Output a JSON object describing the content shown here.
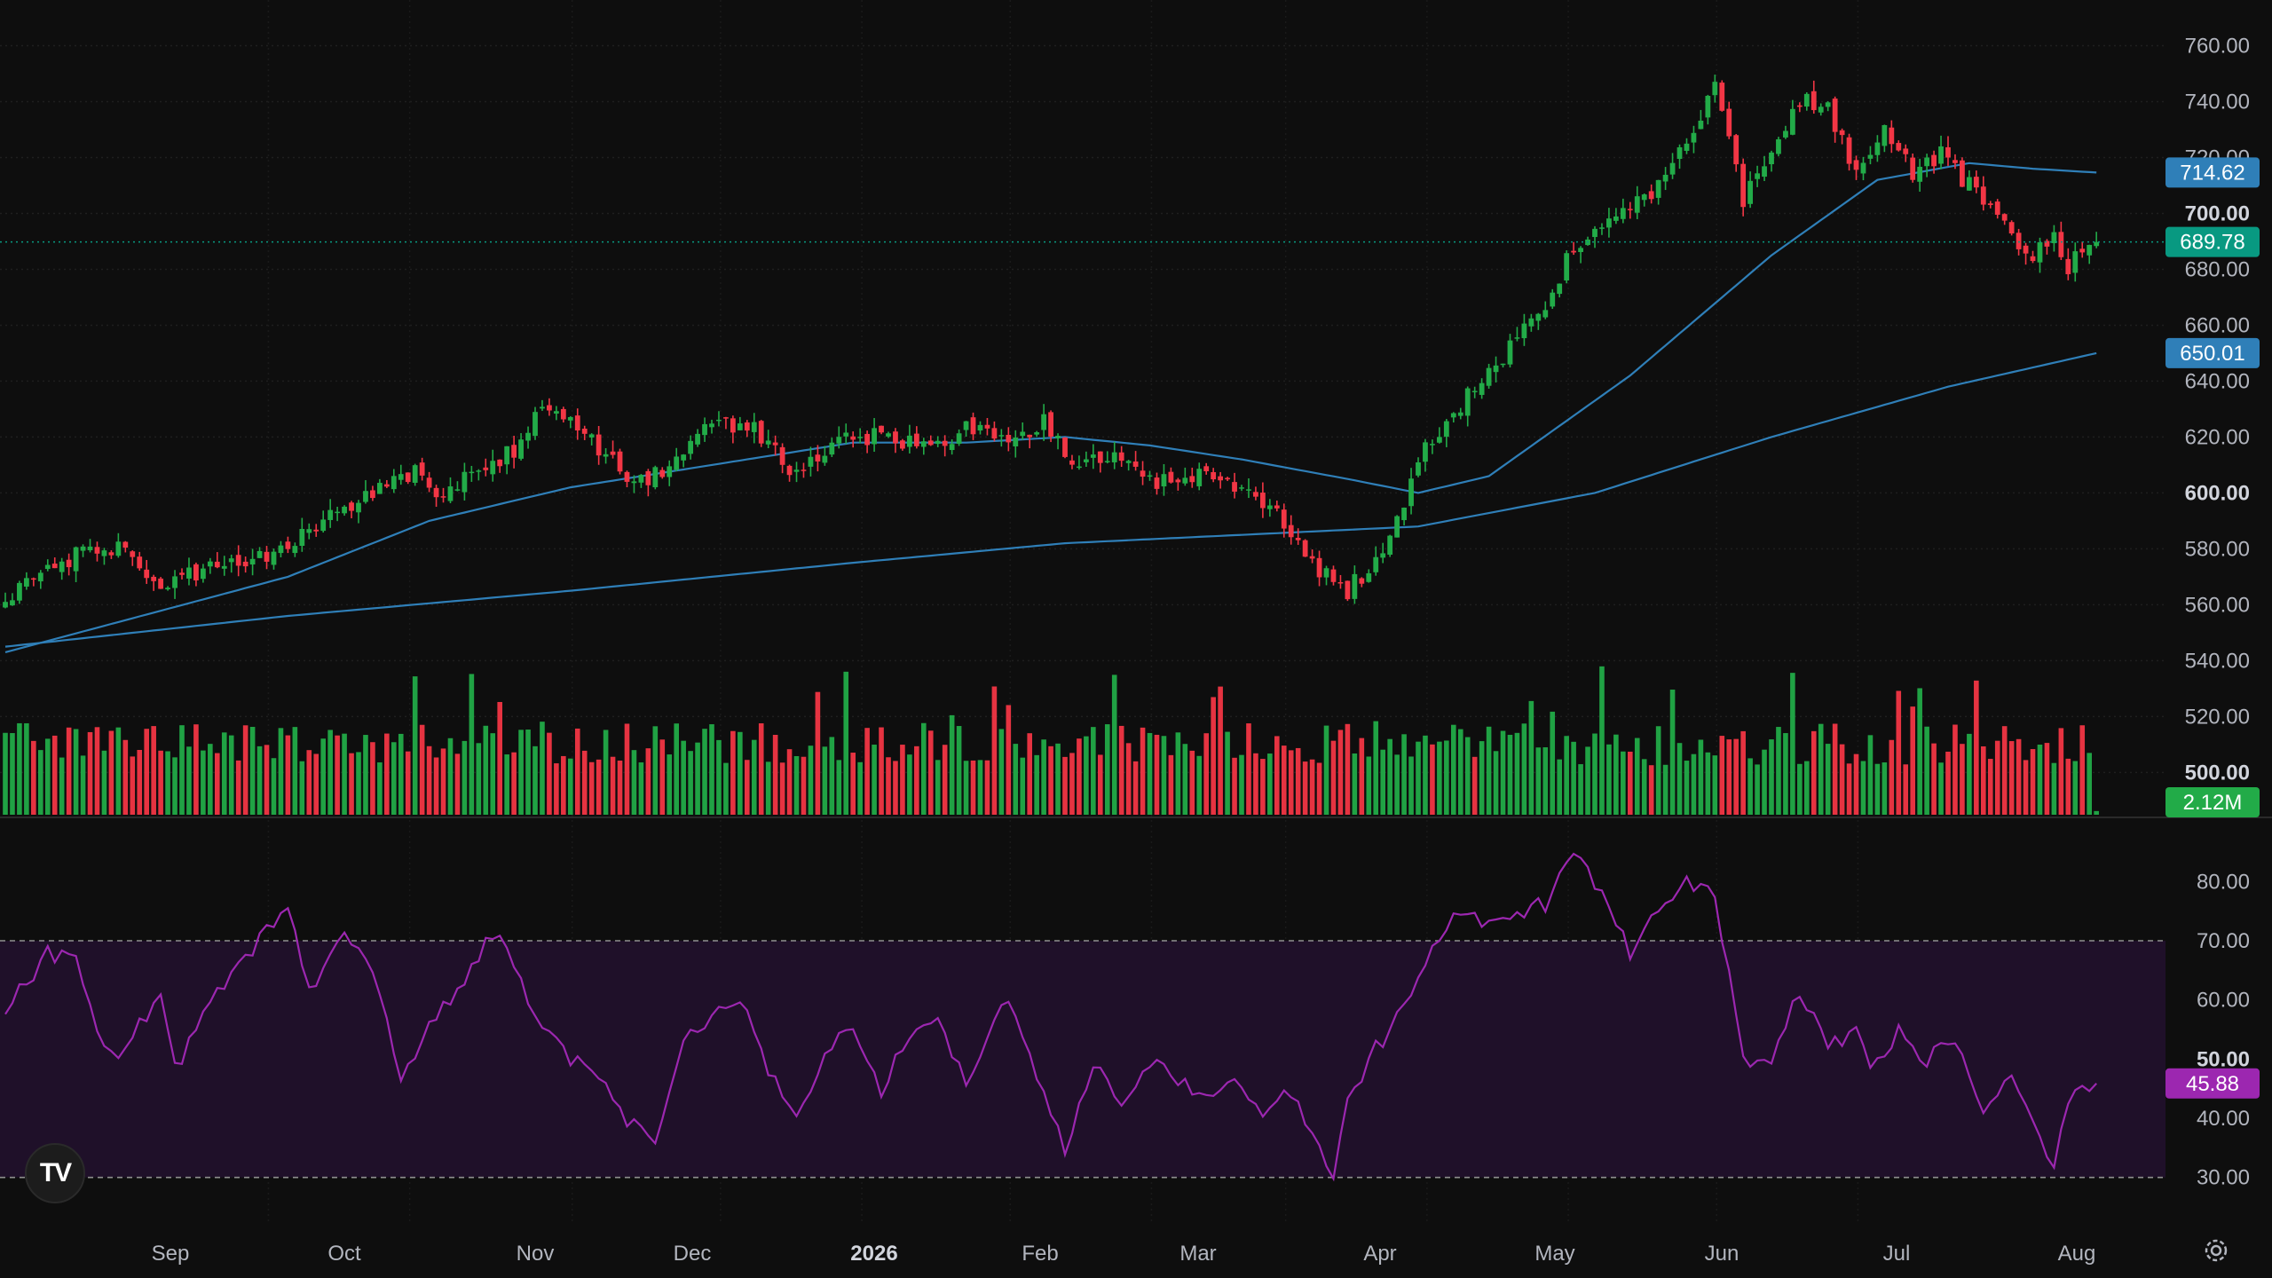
{
  "chart_data": [
    {
      "type": "candlestick",
      "ylim": [
        489,
        770
      ],
      "y_ticks": [
        "760.00",
        "740.00",
        "720.00",
        "700.00",
        "680.00",
        "660.00",
        "640.00",
        "620.00",
        "600.00",
        "580.00",
        "560.00",
        "540.00",
        "520.00",
        "500.00"
      ],
      "bold_ticks": [
        "700.00",
        "600.00",
        "500.00"
      ],
      "x_ticks": [
        "Sep",
        "Oct",
        "Nov",
        "Dec",
        "2026",
        "Feb",
        "Mar",
        "Apr",
        "May",
        "Jun",
        "Jul",
        "Aug"
      ],
      "anchors": [
        [
          0,
          562
        ],
        [
          10,
          578
        ],
        [
          16,
          581
        ],
        [
          22,
          565
        ],
        [
          30,
          575
        ],
        [
          38,
          578
        ],
        [
          45,
          590
        ],
        [
          52,
          600
        ],
        [
          58,
          608
        ],
        [
          62,
          598
        ],
        [
          66,
          608
        ],
        [
          72,
          615
        ],
        [
          76,
          633
        ],
        [
          80,
          628
        ],
        [
          85,
          612
        ],
        [
          90,
          603
        ],
        [
          95,
          612
        ],
        [
          100,
          624
        ],
        [
          106,
          622
        ],
        [
          112,
          607
        ],
        [
          118,
          618
        ],
        [
          125,
          621
        ],
        [
          131,
          616
        ],
        [
          137,
          624
        ],
        [
          143,
          618
        ],
        [
          147,
          625
        ],
        [
          151,
          610
        ],
        [
          157,
          612
        ],
        [
          163,
          604
        ],
        [
          169,
          606
        ],
        [
          175,
          603
        ],
        [
          181,
          590
        ],
        [
          186,
          572
        ],
        [
          190,
          565
        ],
        [
          194,
          577
        ],
        [
          197,
          590
        ],
        [
          201,
          617
        ],
        [
          206,
          632
        ],
        [
          212,
          648
        ],
        [
          218,
          668
        ],
        [
          222,
          688
        ],
        [
          226,
          698
        ],
        [
          232,
          704
        ],
        [
          238,
          725
        ],
        [
          242,
          745
        ],
        [
          246,
          705
        ],
        [
          250,
          725
        ],
        [
          254,
          740
        ],
        [
          258,
          738
        ],
        [
          262,
          715
        ],
        [
          266,
          732
        ],
        [
          270,
          715
        ],
        [
          274,
          722
        ],
        [
          278,
          710
        ],
        [
          282,
          700
        ],
        [
          286,
          684
        ],
        [
          290,
          692
        ],
        [
          292,
          680
        ],
        [
          294,
          688
        ],
        [
          296,
          690
        ]
      ],
      "sma50_anchors": [
        [
          0,
          543
        ],
        [
          40,
          570
        ],
        [
          60,
          590
        ],
        [
          80,
          602
        ],
        [
          100,
          610
        ],
        [
          120,
          618
        ],
        [
          136,
          618
        ],
        [
          150,
          620
        ],
        [
          162,
          617
        ],
        [
          175,
          612
        ],
        [
          190,
          605
        ],
        [
          200,
          600
        ],
        [
          210,
          606
        ],
        [
          230,
          642
        ],
        [
          250,
          685
        ],
        [
          265,
          712
        ],
        [
          278,
          718
        ],
        [
          287,
          716
        ],
        [
          296,
          714.62
        ]
      ],
      "sma200_anchors": [
        [
          0,
          545
        ],
        [
          40,
          556
        ],
        [
          80,
          565
        ],
        [
          120,
          575
        ],
        [
          150,
          582
        ],
        [
          175,
          585
        ],
        [
          200,
          588
        ],
        [
          225,
          600
        ],
        [
          250,
          620
        ],
        [
          275,
          638
        ],
        [
          296,
          650.01
        ]
      ],
      "volume_max": 5.8,
      "series": [
        {
          "name": "",
          "badge": "714.62",
          "color": "#2f7fb8"
        },
        {
          "name": "",
          "badge": "689.78",
          "color": "#089981"
        },
        {
          "name": "",
          "badge": "650.01",
          "color": "#2f7fb8"
        },
        {
          "name": "",
          "badge": "2.12M",
          "color": "#22ab48"
        }
      ]
    },
    {
      "type": "line",
      "ylim": [
        25,
        88
      ],
      "y_ticks": [
        "80.00",
        "70.00",
        "60.00",
        "50.00",
        "40.00",
        "30.00"
      ],
      "bold_ticks": [
        "50.00"
      ],
      "band": [
        30,
        70
      ],
      "anchors": [
        [
          0,
          58
        ],
        [
          6,
          68
        ],
        [
          10,
          66
        ],
        [
          12,
          58
        ],
        [
          15,
          50
        ],
        [
          18,
          55
        ],
        [
          22,
          60
        ],
        [
          24,
          48
        ],
        [
          28,
          58
        ],
        [
          32,
          64
        ],
        [
          36,
          70
        ],
        [
          40,
          75
        ],
        [
          43,
          62
        ],
        [
          48,
          71
        ],
        [
          52,
          65
        ],
        [
          56,
          46
        ],
        [
          60,
          55
        ],
        [
          64,
          62
        ],
        [
          68,
          70
        ],
        [
          71,
          70
        ],
        [
          75,
          56
        ],
        [
          80,
          50
        ],
        [
          85,
          46
        ],
        [
          88,
          40
        ],
        [
          92,
          35
        ],
        [
          96,
          52
        ],
        [
          100,
          58
        ],
        [
          104,
          60
        ],
        [
          108,
          48
        ],
        [
          112,
          40
        ],
        [
          116,
          50
        ],
        [
          120,
          56
        ],
        [
          124,
          45
        ],
        [
          128,
          54
        ],
        [
          132,
          58
        ],
        [
          136,
          45
        ],
        [
          140,
          58
        ],
        [
          142,
          61
        ],
        [
          146,
          48
        ],
        [
          150,
          35
        ],
        [
          154,
          50
        ],
        [
          158,
          42
        ],
        [
          162,
          50
        ],
        [
          166,
          46
        ],
        [
          170,
          44
        ],
        [
          174,
          48
        ],
        [
          178,
          40
        ],
        [
          182,
          45
        ],
        [
          186,
          35
        ],
        [
          188,
          30
        ],
        [
          190,
          42
        ],
        [
          194,
          52
        ],
        [
          198,
          58
        ],
        [
          202,
          70
        ],
        [
          206,
          75
        ],
        [
          210,
          72
        ],
        [
          214,
          75
        ],
        [
          218,
          76
        ],
        [
          222,
          85
        ],
        [
          226,
          78
        ],
        [
          230,
          68
        ],
        [
          234,
          75
        ],
        [
          238,
          80
        ],
        [
          242,
          78
        ],
        [
          246,
          50
        ],
        [
          250,
          50
        ],
        [
          254,
          62
        ],
        [
          258,
          52
        ],
        [
          262,
          55
        ],
        [
          264,
          48
        ],
        [
          268,
          55
        ],
        [
          272,
          50
        ],
        [
          276,
          53
        ],
        [
          280,
          42
        ],
        [
          284,
          46
        ],
        [
          288,
          36
        ],
        [
          290,
          32
        ],
        [
          292,
          42
        ],
        [
          294,
          45
        ],
        [
          296,
          45.88
        ]
      ],
      "series": [
        {
          "name": "",
          "badge": "45.88",
          "color": "#9c27b0"
        }
      ]
    }
  ]
}
